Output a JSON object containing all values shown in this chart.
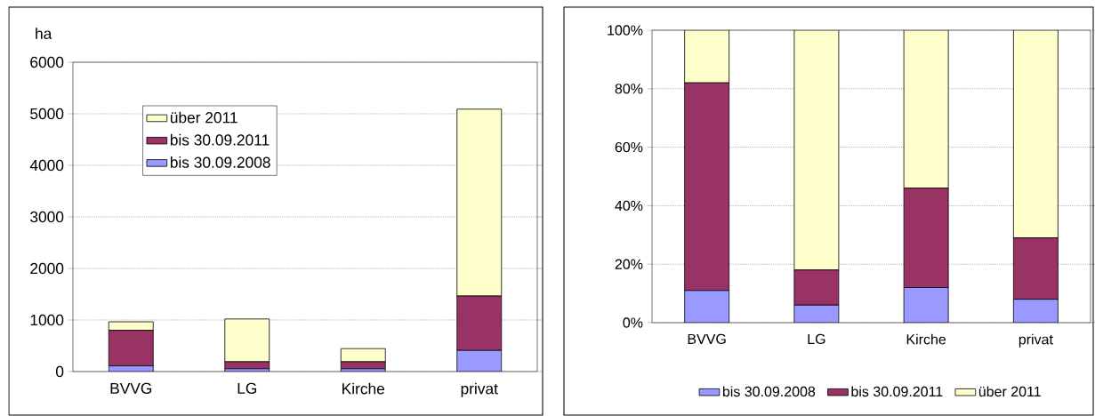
{
  "chart_data": [
    {
      "type": "bar",
      "stacked": true,
      "ylabel": "ha",
      "categories": [
        "BVVG",
        "LG",
        "Kirche",
        "privat"
      ],
      "series": [
        {
          "name": "bis 30.09.2008",
          "color": "#9999ff",
          "values": [
            110,
            55,
            55,
            410
          ]
        },
        {
          "name": "bis 30.09.2011",
          "color": "#993366",
          "values": [
            690,
            135,
            135,
            1055
          ]
        },
        {
          "name": "über 2011",
          "color": "#ffffcc",
          "values": [
            165,
            830,
            255,
            3625
          ]
        }
      ],
      "ylim": [
        0,
        6000
      ],
      "yticks": [
        0,
        1000,
        2000,
        3000,
        4000,
        5000,
        6000
      ],
      "grid": "y",
      "legend": "top left"
    },
    {
      "type": "bar",
      "stacked": true,
      "categories": [
        "BVVG",
        "LG",
        "Kirche",
        "privat"
      ],
      "series": [
        {
          "name": "bis 30.09.2008",
          "color": "#9999ff",
          "values": [
            11,
            6,
            12,
            8
          ]
        },
        {
          "name": "bis 30.09.2011",
          "color": "#993366",
          "values": [
            71,
            12,
            34,
            21
          ]
        },
        {
          "name": "über 2011",
          "color": "#ffffcc",
          "values": [
            18,
            82,
            54,
            71
          ]
        }
      ],
      "ylim": [
        0,
        100
      ],
      "yticks": [
        {
          "value": 0,
          "label": "0%"
        },
        {
          "value": 20,
          "label": "20%"
        },
        {
          "value": 40,
          "label": "40%"
        },
        {
          "value": 60,
          "label": "60%"
        },
        {
          "value": 80,
          "label": "80%"
        },
        {
          "value": 100,
          "label": "100%"
        }
      ],
      "grid": "y",
      "legend": "bottom"
    }
  ]
}
